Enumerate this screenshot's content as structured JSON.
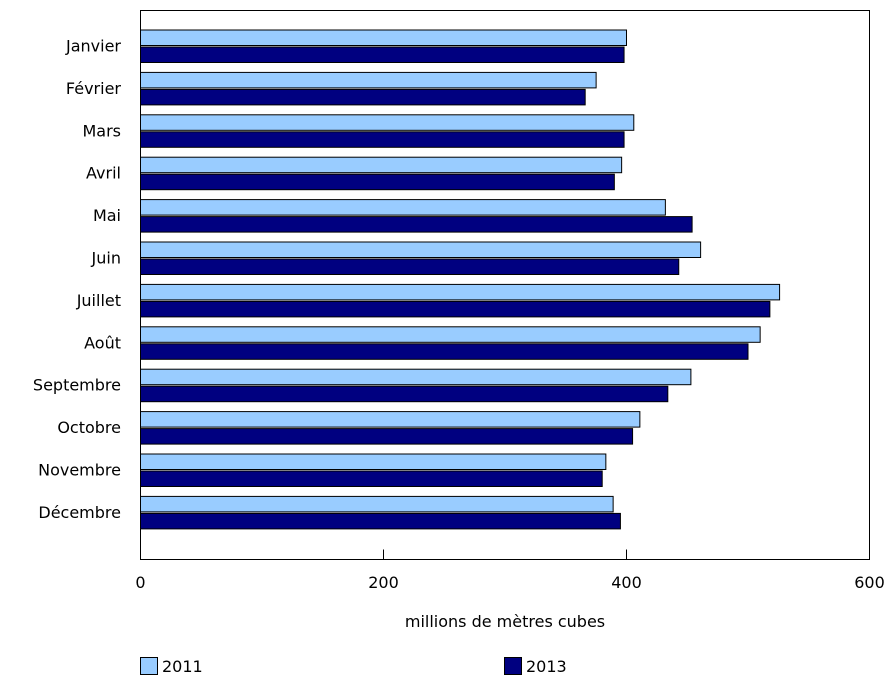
{
  "chart_data": {
    "type": "bar",
    "orientation": "horizontal",
    "categories": [
      "Janvier",
      "Février",
      "Mars",
      "Avril",
      "Mai",
      "Juin",
      "Juillet",
      "Août",
      "Septembre",
      "Octobre",
      "Novembre",
      "Décembre"
    ],
    "series": [
      {
        "name": "2011",
        "color": "#99ccff",
        "values": [
          400,
          375,
          406,
          396,
          432,
          461,
          526,
          510,
          453,
          411,
          383,
          389
        ]
      },
      {
        "name": "2013",
        "color": "#000080",
        "values": [
          398,
          366,
          398,
          390,
          454,
          443,
          518,
          500,
          434,
          405,
          380,
          395
        ]
      }
    ],
    "xlabel": "millions de mètres cubes",
    "xlim": [
      0,
      600
    ],
    "xticks": [
      "0",
      "200",
      "400",
      "600"
    ],
    "grid": false,
    "legend_position": "bottom"
  }
}
